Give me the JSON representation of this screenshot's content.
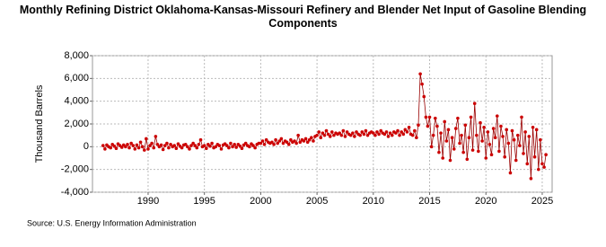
{
  "chart_data": {
    "type": "scatter",
    "title": "Monthly Refining District Oklahoma-Kansas-Missouri Refinery and Blender Net Input of Gasoline Blending Components",
    "ylabel": "Thousand Barrels",
    "source": "Source: U.S. Energy Information Administration",
    "color": "#cc0000",
    "line_color": "#990000",
    "grid": true,
    "xlim": [
      1985.06,
      2025.88
    ],
    "xticks": [
      1990,
      1995,
      2000,
      2005,
      2010,
      2015,
      2020,
      2025
    ],
    "ylim": [
      -4000,
      8000
    ],
    "yticks": [
      {
        "value": -4000,
        "label": "-4,000"
      },
      {
        "value": -2000,
        "label": "-2,000"
      },
      0,
      {
        "value": 2000,
        "label": "2,000"
      },
      {
        "value": 4000,
        "label": "4,000"
      },
      {
        "value": 6000,
        "label": "6,000"
      },
      {
        "value": 8000,
        "label": "8,000"
      }
    ],
    "x": [
      1986.0,
      1986.17,
      1986.33,
      1986.5,
      1986.67,
      1986.83,
      1987.0,
      1987.17,
      1987.33,
      1987.5,
      1987.67,
      1987.83,
      1988.0,
      1988.17,
      1988.33,
      1988.5,
      1988.67,
      1988.83,
      1989.0,
      1989.17,
      1989.33,
      1989.5,
      1989.67,
      1989.83,
      1990.0,
      1990.17,
      1990.33,
      1990.5,
      1990.67,
      1990.83,
      1991.0,
      1991.17,
      1991.33,
      1991.5,
      1991.67,
      1991.83,
      1992.0,
      1992.17,
      1992.33,
      1992.5,
      1992.67,
      1992.83,
      1993.0,
      1993.17,
      1993.33,
      1993.5,
      1993.67,
      1993.83,
      1994.0,
      1994.17,
      1994.33,
      1994.5,
      1994.67,
      1994.83,
      1995.0,
      1995.17,
      1995.33,
      1995.5,
      1995.67,
      1995.83,
      1996.0,
      1996.17,
      1996.33,
      1996.5,
      1996.67,
      1996.83,
      1997.0,
      1997.17,
      1997.33,
      1997.5,
      1997.67,
      1997.83,
      1998.0,
      1998.17,
      1998.33,
      1998.5,
      1998.67,
      1998.83,
      1999.0,
      1999.17,
      1999.33,
      1999.5,
      1999.67,
      1999.83,
      2000.0,
      2000.17,
      2000.33,
      2000.5,
      2000.67,
      2000.83,
      2001.0,
      2001.17,
      2001.33,
      2001.5,
      2001.67,
      2001.83,
      2002.0,
      2002.17,
      2002.33,
      2002.5,
      2002.67,
      2002.83,
      2003.0,
      2003.17,
      2003.33,
      2003.5,
      2003.67,
      2003.83,
      2004.0,
      2004.17,
      2004.33,
      2004.5,
      2004.67,
      2004.83,
      2005.0,
      2005.17,
      2005.33,
      2005.5,
      2005.67,
      2005.83,
      2006.0,
      2006.17,
      2006.33,
      2006.5,
      2006.67,
      2006.83,
      2007.0,
      2007.17,
      2007.33,
      2007.5,
      2007.67,
      2007.83,
      2008.0,
      2008.17,
      2008.33,
      2008.5,
      2008.67,
      2008.83,
      2009.0,
      2009.17,
      2009.33,
      2009.5,
      2009.67,
      2009.83,
      2010.0,
      2010.17,
      2010.33,
      2010.5,
      2010.67,
      2010.83,
      2011.0,
      2011.17,
      2011.33,
      2011.5,
      2011.67,
      2011.83,
      2012.0,
      2012.17,
      2012.33,
      2012.5,
      2012.67,
      2012.83,
      2013.0,
      2013.17,
      2013.33,
      2013.5,
      2013.67,
      2013.83,
      2014.0,
      2014.17,
      2014.33,
      2014.5,
      2014.67,
      2014.83,
      2015.0,
      2015.17,
      2015.33,
      2015.5,
      2015.67,
      2015.83,
      2016.0,
      2016.17,
      2016.33,
      2016.5,
      2016.67,
      2016.83,
      2017.0,
      2017.17,
      2017.33,
      2017.5,
      2017.67,
      2017.83,
      2018.0,
      2018.17,
      2018.33,
      2018.5,
      2018.67,
      2018.83,
      2019.0,
      2019.17,
      2019.33,
      2019.5,
      2019.67,
      2019.83,
      2020.0,
      2020.17,
      2020.33,
      2020.5,
      2020.67,
      2020.83,
      2021.0,
      2021.17,
      2021.33,
      2021.5,
      2021.67,
      2021.83,
      2022.0,
      2022.17,
      2022.33,
      2022.5,
      2022.67,
      2022.83,
      2023.0,
      2023.17,
      2023.33,
      2023.5,
      2023.67,
      2023.83,
      2024.0,
      2024.17,
      2024.33,
      2024.5,
      2024.67,
      2024.83,
      2025.0,
      2025.17,
      2025.33
    ],
    "values": [
      100,
      -200,
      150,
      0,
      -100,
      200,
      50,
      -150,
      250,
      100,
      -50,
      150,
      0,
      200,
      -100,
      300,
      100,
      -200,
      150,
      -100,
      400,
      0,
      -300,
      700,
      -200,
      100,
      300,
      -100,
      900,
      200,
      0,
      150,
      -250,
      100,
      300,
      -100,
      200,
      0,
      100,
      -150,
      250,
      50,
      -100,
      150,
      200,
      0,
      -200,
      100,
      300,
      100,
      -100,
      200,
      600,
      0,
      100,
      -150,
      200,
      50,
      300,
      -100,
      0,
      200,
      100,
      -200,
      150,
      250,
      100,
      -100,
      300,
      0,
      200,
      -50,
      200,
      50,
      -150,
      150,
      300,
      100,
      0,
      250,
      100,
      -100,
      200,
      300,
      300,
      500,
      200,
      600,
      400,
      300,
      400,
      200,
      600,
      300,
      500,
      700,
      300,
      500,
      400,
      200,
      600,
      400,
      500,
      300,
      1000,
      400,
      600,
      500,
      700,
      400,
      600,
      800,
      500,
      900,
      1000,
      1300,
      800,
      1200,
      1000,
      1400,
      1100,
      900,
      1300,
      1000,
      1200,
      1100,
      1200,
      1000,
      1400,
      900,
      1300,
      1100,
      1000,
      1200,
      900,
      1300,
      1100,
      1000,
      1300,
      1100,
      1400,
      1000,
      1200,
      1300,
      1200,
      1000,
      1300,
      1100,
      1400,
      1200,
      1100,
      1300,
      900,
      1200,
      1000,
      1300,
      1200,
      1400,
      1000,
      1300,
      1100,
      1500,
      1300,
      1700,
      1100,
      1000,
      1400,
      800,
      1900,
      6400,
      5500,
      4400,
      2600,
      1800,
      2600,
      0,
      1000,
      2500,
      1800,
      -500,
      1200,
      -1000,
      2200,
      500,
      1500,
      -1200,
      800,
      -200,
      1600,
      2500,
      300,
      1000,
      -500,
      1900,
      -1100,
      800,
      2600,
      -300,
      3800,
      1000,
      -400,
      2100,
      500,
      1700,
      -1000,
      1300,
      200,
      -700,
      1600,
      800,
      2700,
      -400,
      1800,
      900,
      -900,
      1500,
      300,
      -2300,
      1400,
      600,
      -1200,
      1000,
      100,
      2600,
      -600,
      1300,
      -1500,
      900,
      -2800,
      1700,
      -900,
      1500,
      -2000,
      600,
      -1500,
      -1800,
      -700
    ]
  }
}
